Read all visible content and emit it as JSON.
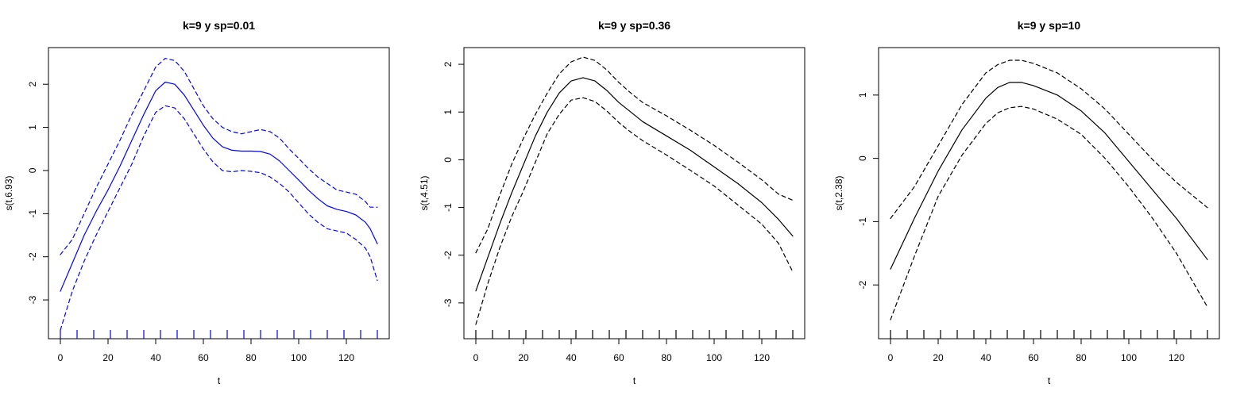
{
  "chart_data": [
    {
      "type": "line",
      "title": "k=9 y sp=0.01",
      "xlabel": "t",
      "ylabel": "s(t,6.93)",
      "color": "#0000ff",
      "xlim": [
        -5,
        138
      ],
      "ylim": [
        -3.9,
        2.85
      ],
      "xticks": [
        0,
        20,
        40,
        60,
        80,
        100,
        120
      ],
      "yticks": [
        -3,
        -2,
        -1,
        0,
        1,
        2
      ],
      "rug": [
        0,
        7,
        14,
        21,
        28,
        35,
        42,
        49,
        56,
        63,
        70,
        77,
        84,
        91,
        98,
        105,
        112,
        119,
        126,
        133
      ],
      "series": [
        {
          "style": "solid",
          "x": [
            0,
            5,
            10,
            15,
            20,
            25,
            30,
            35,
            40,
            44,
            48,
            52,
            56,
            60,
            64,
            68,
            72,
            76,
            80,
            84,
            88,
            92,
            96,
            100,
            104,
            108,
            112,
            116,
            120,
            124,
            128,
            130,
            133
          ],
          "y": [
            -2.8,
            -2.15,
            -1.5,
            -0.95,
            -0.45,
            0.1,
            0.7,
            1.3,
            1.85,
            2.05,
            2.0,
            1.75,
            1.4,
            1.05,
            0.75,
            0.55,
            0.47,
            0.45,
            0.45,
            0.44,
            0.38,
            0.22,
            0.0,
            -0.22,
            -0.45,
            -0.65,
            -0.82,
            -0.9,
            -0.95,
            -1.03,
            -1.2,
            -1.35,
            -1.7
          ]
        },
        {
          "style": "dashed",
          "x": [
            0,
            5,
            10,
            15,
            20,
            25,
            30,
            35,
            40,
            44,
            48,
            52,
            56,
            60,
            64,
            68,
            72,
            76,
            80,
            84,
            88,
            92,
            96,
            100,
            104,
            108,
            112,
            116,
            120,
            124,
            128,
            130,
            133
          ],
          "y": [
            -1.95,
            -1.6,
            -1.0,
            -0.4,
            0.15,
            0.7,
            1.3,
            1.85,
            2.4,
            2.6,
            2.55,
            2.3,
            1.9,
            1.5,
            1.2,
            1.0,
            0.9,
            0.85,
            0.9,
            0.95,
            0.9,
            0.75,
            0.5,
            0.28,
            0.05,
            -0.15,
            -0.3,
            -0.45,
            -0.5,
            -0.55,
            -0.72,
            -0.85,
            -0.85
          ]
        },
        {
          "style": "dashed",
          "x": [
            0,
            5,
            10,
            15,
            20,
            25,
            30,
            35,
            40,
            44,
            48,
            52,
            56,
            60,
            64,
            68,
            72,
            76,
            80,
            84,
            88,
            92,
            96,
            100,
            104,
            108,
            112,
            116,
            120,
            124,
            128,
            130,
            133
          ],
          "y": [
            -3.7,
            -2.8,
            -2.1,
            -1.5,
            -0.95,
            -0.4,
            0.15,
            0.8,
            1.35,
            1.5,
            1.45,
            1.2,
            0.85,
            0.5,
            0.2,
            0.0,
            -0.03,
            0.0,
            -0.02,
            -0.05,
            -0.15,
            -0.3,
            -0.5,
            -0.75,
            -1.0,
            -1.2,
            -1.35,
            -1.4,
            -1.45,
            -1.6,
            -1.8,
            -2.0,
            -2.55
          ]
        }
      ]
    },
    {
      "type": "line",
      "title": "k=9 y sp=0.36",
      "xlabel": "t",
      "ylabel": "s(t,4.51)",
      "color": "#000000",
      "xlim": [
        -5,
        138
      ],
      "ylim": [
        -3.75,
        2.35
      ],
      "xticks": [
        0,
        20,
        40,
        60,
        80,
        100,
        120
      ],
      "yticks": [
        -3,
        -2,
        -1,
        0,
        1,
        2
      ],
      "rug": [
        0,
        7,
        14,
        21,
        28,
        35,
        42,
        49,
        56,
        63,
        70,
        77,
        84,
        91,
        98,
        105,
        112,
        119,
        126,
        133
      ],
      "series": [
        {
          "style": "solid",
          "x": [
            0,
            5,
            10,
            15,
            20,
            25,
            30,
            35,
            40,
            45,
            50,
            55,
            60,
            65,
            70,
            80,
            90,
            100,
            110,
            120,
            127,
            133
          ],
          "y": [
            -2.75,
            -2.05,
            -1.35,
            -0.7,
            -0.1,
            0.5,
            1.0,
            1.4,
            1.65,
            1.72,
            1.65,
            1.45,
            1.2,
            1.0,
            0.8,
            0.5,
            0.2,
            -0.15,
            -0.5,
            -0.9,
            -1.25,
            -1.6
          ]
        },
        {
          "style": "dashed",
          "x": [
            0,
            5,
            10,
            15,
            20,
            25,
            30,
            35,
            40,
            45,
            50,
            55,
            60,
            65,
            70,
            80,
            90,
            100,
            110,
            120,
            127,
            133
          ],
          "y": [
            -1.95,
            -1.45,
            -0.75,
            -0.1,
            0.45,
            0.95,
            1.4,
            1.8,
            2.05,
            2.15,
            2.08,
            1.88,
            1.62,
            1.4,
            1.2,
            0.92,
            0.62,
            0.3,
            -0.05,
            -0.42,
            -0.72,
            -0.85
          ]
        },
        {
          "style": "dashed",
          "x": [
            0,
            5,
            10,
            15,
            20,
            25,
            30,
            35,
            40,
            45,
            50,
            55,
            60,
            65,
            70,
            80,
            90,
            100,
            110,
            120,
            127,
            133
          ],
          "y": [
            -3.45,
            -2.6,
            -1.85,
            -1.2,
            -0.65,
            -0.05,
            0.55,
            0.95,
            1.25,
            1.3,
            1.22,
            1.02,
            0.78,
            0.58,
            0.4,
            0.1,
            -0.22,
            -0.55,
            -0.95,
            -1.35,
            -1.75,
            -2.35
          ]
        }
      ]
    },
    {
      "type": "line",
      "title": "k=9 y sp=10",
      "xlabel": "t",
      "ylabel": "s(t,2.38)",
      "color": "#000000",
      "xlim": [
        -5,
        138
      ],
      "ylim": [
        -2.85,
        1.75
      ],
      "xticks": [
        0,
        20,
        40,
        60,
        80,
        100,
        120
      ],
      "yticks": [
        -2,
        -1,
        0,
        1
      ],
      "rug": [
        0,
        7,
        14,
        21,
        28,
        35,
        42,
        49,
        56,
        63,
        70,
        77,
        84,
        91,
        98,
        105,
        112,
        119,
        126,
        133
      ],
      "series": [
        {
          "style": "solid",
          "x": [
            0,
            10,
            20,
            30,
            40,
            45,
            50,
            55,
            60,
            70,
            80,
            90,
            100,
            110,
            120,
            133
          ],
          "y": [
            -1.75,
            -0.95,
            -0.2,
            0.45,
            0.95,
            1.12,
            1.2,
            1.2,
            1.15,
            1.0,
            0.75,
            0.4,
            -0.05,
            -0.5,
            -0.95,
            -1.6
          ]
        },
        {
          "style": "dashed",
          "x": [
            0,
            10,
            20,
            30,
            40,
            45,
            50,
            55,
            60,
            70,
            80,
            90,
            100,
            110,
            120,
            133
          ],
          "y": [
            -0.95,
            -0.45,
            0.2,
            0.85,
            1.35,
            1.48,
            1.55,
            1.55,
            1.5,
            1.35,
            1.1,
            0.78,
            0.38,
            -0.02,
            -0.38,
            -0.78
          ]
        },
        {
          "style": "dashed",
          "x": [
            0,
            10,
            20,
            30,
            40,
            45,
            50,
            55,
            60,
            70,
            80,
            90,
            100,
            110,
            120,
            133
          ],
          "y": [
            -2.55,
            -1.55,
            -0.6,
            0.05,
            0.55,
            0.72,
            0.8,
            0.82,
            0.78,
            0.62,
            0.38,
            0.0,
            -0.45,
            -0.95,
            -1.5,
            -2.35
          ]
        }
      ]
    }
  ]
}
